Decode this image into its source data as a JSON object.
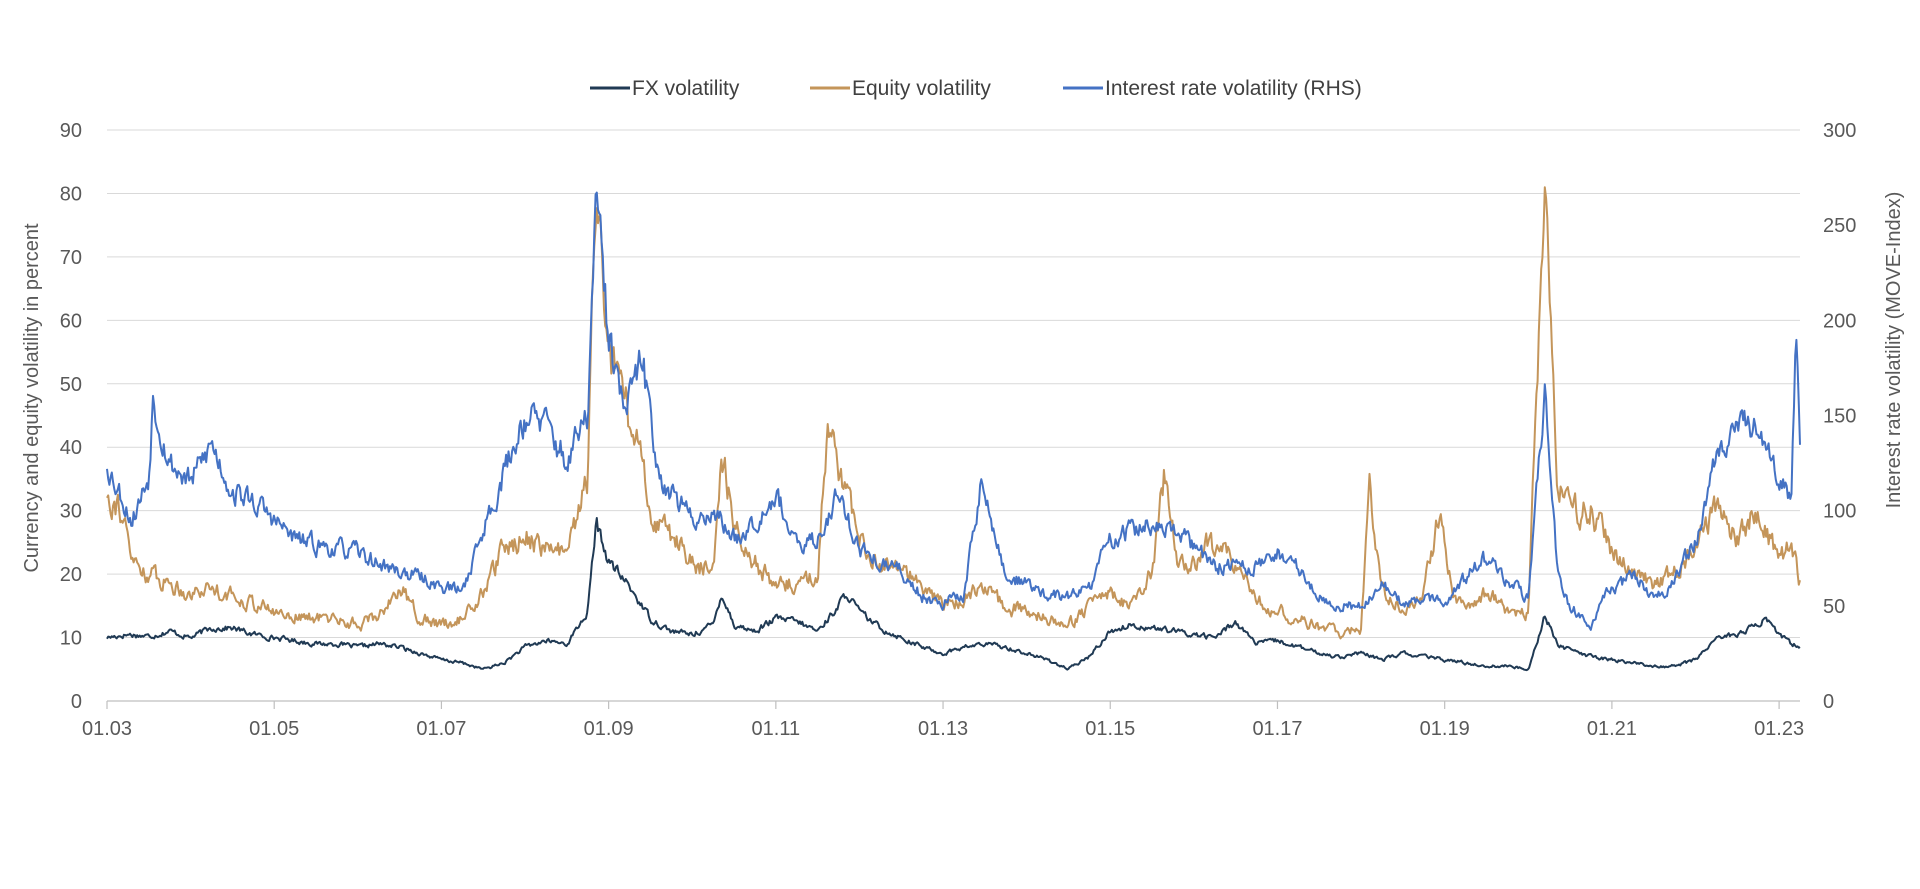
{
  "chart_data": {
    "type": "line",
    "title": "",
    "legend": {
      "position": "top",
      "entries": [
        "FX volatility",
        "Equity volatility",
        "Interest rate volatility (RHS)"
      ]
    },
    "x_axis": {
      "tick_labels": [
        "01.03",
        "01.05",
        "01.07",
        "01.09",
        "01.11",
        "01.13",
        "01.15",
        "01.17",
        "01.19",
        "01.21",
        "01.23"
      ],
      "start": 2003.0,
      "end": 2023.25
    },
    "y_left": {
      "label": "Currency and equity volatility in percent",
      "ylim": [
        0,
        90
      ],
      "ticks": [
        0,
        10,
        20,
        30,
        40,
        50,
        60,
        70,
        80,
        90
      ]
    },
    "y_right": {
      "label": "Interest rate volatility (MOVE-Index)",
      "ylim": [
        0,
        300
      ],
      "ticks": [
        0,
        50,
        100,
        150,
        200,
        250,
        300
      ]
    },
    "grid": true,
    "colors": {
      "fx": "#203a54",
      "equity": "#c4955a",
      "rates": "#4472c4"
    },
    "series": [
      {
        "name": "FX volatility",
        "axis": "left",
        "color": "#203a54",
        "points": [
          [
            2003.0,
            10.0
          ],
          [
            2003.25,
            10.5
          ],
          [
            2003.5,
            10.2
          ],
          [
            2003.75,
            11.0
          ],
          [
            2004.0,
            10.0
          ],
          [
            2004.25,
            11.5
          ],
          [
            2004.5,
            11.5
          ],
          [
            2004.75,
            10.5
          ],
          [
            2005.0,
            10.0
          ],
          [
            2005.25,
            9.5
          ],
          [
            2005.5,
            9.0
          ],
          [
            2005.75,
            9.0
          ],
          [
            2006.0,
            8.5
          ],
          [
            2006.25,
            9.0
          ],
          [
            2006.5,
            8.5
          ],
          [
            2006.75,
            7.5
          ],
          [
            2007.0,
            6.5
          ],
          [
            2007.25,
            6.0
          ],
          [
            2007.5,
            5.0
          ],
          [
            2007.75,
            6.0
          ],
          [
            2008.0,
            8.5
          ],
          [
            2008.25,
            9.5
          ],
          [
            2008.5,
            9.0
          ],
          [
            2008.75,
            14.0
          ],
          [
            2008.85,
            28.0
          ],
          [
            2009.0,
            22.0
          ],
          [
            2009.25,
            18.0
          ],
          [
            2009.5,
            13.0
          ],
          [
            2009.75,
            11.0
          ],
          [
            2010.0,
            10.5
          ],
          [
            2010.25,
            12.0
          ],
          [
            2010.35,
            17.0
          ],
          [
            2010.5,
            12.0
          ],
          [
            2010.75,
            11.0
          ],
          [
            2011.0,
            13.0
          ],
          [
            2011.25,
            12.5
          ],
          [
            2011.5,
            11.0
          ],
          [
            2011.75,
            15.0
          ],
          [
            2011.85,
            17.0
          ],
          [
            2012.0,
            14.0
          ],
          [
            2012.25,
            11.5
          ],
          [
            2012.5,
            10.0
          ],
          [
            2012.75,
            8.5
          ],
          [
            2013.0,
            7.5
          ],
          [
            2013.25,
            8.5
          ],
          [
            2013.5,
            9.0
          ],
          [
            2013.75,
            8.5
          ],
          [
            2014.0,
            7.5
          ],
          [
            2014.25,
            6.5
          ],
          [
            2014.5,
            5.0
          ],
          [
            2014.75,
            7.0
          ],
          [
            2015.0,
            11.0
          ],
          [
            2015.25,
            12.0
          ],
          [
            2015.5,
            11.5
          ],
          [
            2015.75,
            11.0
          ],
          [
            2016.0,
            10.5
          ],
          [
            2016.25,
            10.0
          ],
          [
            2016.5,
            12.5
          ],
          [
            2016.75,
            9.0
          ],
          [
            2017.0,
            9.5
          ],
          [
            2017.25,
            8.5
          ],
          [
            2017.5,
            7.5
          ],
          [
            2017.75,
            7.0
          ],
          [
            2018.0,
            7.5
          ],
          [
            2018.25,
            6.5
          ],
          [
            2018.5,
            7.5
          ],
          [
            2018.75,
            7.0
          ],
          [
            2019.0,
            6.5
          ],
          [
            2019.25,
            6.0
          ],
          [
            2019.5,
            5.5
          ],
          [
            2019.75,
            5.5
          ],
          [
            2020.0,
            5.0
          ],
          [
            2020.2,
            13.5
          ],
          [
            2020.35,
            9.0
          ],
          [
            2020.5,
            8.0
          ],
          [
            2020.75,
            7.0
          ],
          [
            2021.0,
            6.5
          ],
          [
            2021.25,
            6.0
          ],
          [
            2021.5,
            5.5
          ],
          [
            2021.75,
            5.5
          ],
          [
            2022.0,
            6.5
          ],
          [
            2022.25,
            10.0
          ],
          [
            2022.5,
            10.5
          ],
          [
            2022.75,
            12.0
          ],
          [
            2022.85,
            13.0
          ],
          [
            2023.0,
            10.5
          ],
          [
            2023.15,
            9.0
          ],
          [
            2023.25,
            8.5
          ]
        ]
      },
      {
        "name": "Equity volatility",
        "axis": "left",
        "color": "#c4955a",
        "points": [
          [
            2003.0,
            33.0
          ],
          [
            2003.15,
            31.0
          ],
          [
            2003.3,
            22.0
          ],
          [
            2003.5,
            20.0
          ],
          [
            2003.75,
            18.5
          ],
          [
            2004.0,
            17.0
          ],
          [
            2004.25,
            18.0
          ],
          [
            2004.5,
            16.5
          ],
          [
            2004.75,
            15.5
          ],
          [
            2005.0,
            14.0
          ],
          [
            2005.25,
            13.5
          ],
          [
            2005.5,
            13.0
          ],
          [
            2005.75,
            13.0
          ],
          [
            2006.0,
            12.0
          ],
          [
            2006.25,
            13.5
          ],
          [
            2006.5,
            18.0
          ],
          [
            2006.75,
            13.0
          ],
          [
            2007.0,
            12.0
          ],
          [
            2007.25,
            13.0
          ],
          [
            2007.5,
            17.0
          ],
          [
            2007.75,
            24.0
          ],
          [
            2008.0,
            26.0
          ],
          [
            2008.25,
            24.0
          ],
          [
            2008.5,
            23.0
          ],
          [
            2008.75,
            35.0
          ],
          [
            2008.85,
            80.0
          ],
          [
            2009.0,
            55.0
          ],
          [
            2009.15,
            48.0
          ],
          [
            2009.35,
            40.0
          ],
          [
            2009.5,
            30.0
          ],
          [
            2009.75,
            26.0
          ],
          [
            2010.0,
            22.0
          ],
          [
            2010.25,
            20.0
          ],
          [
            2010.35,
            40.0
          ],
          [
            2010.5,
            28.0
          ],
          [
            2010.75,
            22.0
          ],
          [
            2011.0,
            18.0
          ],
          [
            2011.25,
            18.5
          ],
          [
            2011.5,
            20.0
          ],
          [
            2011.62,
            45.0
          ],
          [
            2011.75,
            36.0
          ],
          [
            2012.0,
            25.0
          ],
          [
            2012.25,
            22.0
          ],
          [
            2012.5,
            22.0
          ],
          [
            2012.75,
            17.0
          ],
          [
            2013.0,
            15.5
          ],
          [
            2013.25,
            16.0
          ],
          [
            2013.5,
            18.0
          ],
          [
            2013.75,
            14.5
          ],
          [
            2014.0,
            14.5
          ],
          [
            2014.25,
            13.0
          ],
          [
            2014.5,
            12.0
          ],
          [
            2014.75,
            15.0
          ],
          [
            2015.0,
            17.0
          ],
          [
            2015.25,
            15.0
          ],
          [
            2015.5,
            20.0
          ],
          [
            2015.65,
            36.0
          ],
          [
            2015.8,
            23.0
          ],
          [
            2016.0,
            21.0
          ],
          [
            2016.15,
            25.0
          ],
          [
            2016.5,
            22.0
          ],
          [
            2016.75,
            16.0
          ],
          [
            2017.0,
            14.0
          ],
          [
            2017.25,
            13.0
          ],
          [
            2017.5,
            11.5
          ],
          [
            2017.75,
            11.0
          ],
          [
            2018.0,
            11.0
          ],
          [
            2018.1,
            33.0
          ],
          [
            2018.25,
            18.0
          ],
          [
            2018.5,
            14.0
          ],
          [
            2018.75,
            17.0
          ],
          [
            2018.95,
            31.0
          ],
          [
            2019.1,
            17.0
          ],
          [
            2019.25,
            14.0
          ],
          [
            2019.5,
            17.0
          ],
          [
            2019.75,
            14.5
          ],
          [
            2020.0,
            14.0
          ],
          [
            2020.2,
            82.0
          ],
          [
            2020.35,
            35.0
          ],
          [
            2020.5,
            30.0
          ],
          [
            2020.75,
            30.0
          ],
          [
            2021.0,
            24.0
          ],
          [
            2021.25,
            20.0
          ],
          [
            2021.5,
            18.5
          ],
          [
            2021.75,
            20.0
          ],
          [
            2022.0,
            24.0
          ],
          [
            2022.25,
            30.0
          ],
          [
            2022.5,
            26.0
          ],
          [
            2022.75,
            30.0
          ],
          [
            2023.0,
            22.0
          ],
          [
            2023.15,
            24.0
          ],
          [
            2023.25,
            19.0
          ]
        ]
      },
      {
        "name": "Interest rate volatility (RHS)",
        "axis": "right",
        "color": "#4472c4",
        "points": [
          [
            2003.0,
            125.0
          ],
          [
            2003.15,
            110.0
          ],
          [
            2003.3,
            95.0
          ],
          [
            2003.5,
            118.0
          ],
          [
            2003.55,
            160.0
          ],
          [
            2003.75,
            125.0
          ],
          [
            2004.0,
            115.0
          ],
          [
            2004.25,
            135.0
          ],
          [
            2004.5,
            110.0
          ],
          [
            2004.75,
            105.0
          ],
          [
            2005.0,
            95.0
          ],
          [
            2005.25,
            85.0
          ],
          [
            2005.5,
            82.0
          ],
          [
            2005.75,
            80.0
          ],
          [
            2006.0,
            78.0
          ],
          [
            2006.25,
            72.0
          ],
          [
            2006.5,
            68.0
          ],
          [
            2006.75,
            65.0
          ],
          [
            2007.0,
            60.0
          ],
          [
            2007.25,
            58.0
          ],
          [
            2007.5,
            90.0
          ],
          [
            2007.75,
            120.0
          ],
          [
            2008.0,
            150.0
          ],
          [
            2008.25,
            145.0
          ],
          [
            2008.5,
            125.0
          ],
          [
            2008.75,
            150.0
          ],
          [
            2008.85,
            264.0
          ],
          [
            2009.0,
            190.0
          ],
          [
            2009.2,
            150.0
          ],
          [
            2009.4,
            180.0
          ],
          [
            2009.6,
            120.0
          ],
          [
            2009.75,
            110.0
          ],
          [
            2010.0,
            95.0
          ],
          [
            2010.25,
            100.0
          ],
          [
            2010.5,
            85.0
          ],
          [
            2010.75,
            95.0
          ],
          [
            2011.0,
            110.0
          ],
          [
            2011.25,
            80.0
          ],
          [
            2011.5,
            85.0
          ],
          [
            2011.75,
            110.0
          ],
          [
            2012.0,
            80.0
          ],
          [
            2012.25,
            72.0
          ],
          [
            2012.5,
            68.0
          ],
          [
            2012.75,
            55.0
          ],
          [
            2013.0,
            52.0
          ],
          [
            2013.25,
            55.0
          ],
          [
            2013.45,
            115.0
          ],
          [
            2013.75,
            65.0
          ],
          [
            2014.0,
            62.0
          ],
          [
            2014.25,
            55.0
          ],
          [
            2014.5,
            55.0
          ],
          [
            2014.75,
            60.0
          ],
          [
            2015.0,
            85.0
          ],
          [
            2015.25,
            90.0
          ],
          [
            2015.5,
            92.0
          ],
          [
            2015.75,
            88.0
          ],
          [
            2016.0,
            82.0
          ],
          [
            2016.25,
            70.0
          ],
          [
            2016.5,
            72.0
          ],
          [
            2016.75,
            70.0
          ],
          [
            2017.0,
            78.0
          ],
          [
            2017.25,
            70.0
          ],
          [
            2017.5,
            55.0
          ],
          [
            2017.75,
            50.0
          ],
          [
            2018.0,
            50.0
          ],
          [
            2018.25,
            62.0
          ],
          [
            2018.5,
            50.0
          ],
          [
            2018.75,
            55.0
          ],
          [
            2019.0,
            52.0
          ],
          [
            2019.25,
            65.0
          ],
          [
            2019.5,
            75.0
          ],
          [
            2019.75,
            62.0
          ],
          [
            2020.0,
            55.0
          ],
          [
            2020.2,
            160.0
          ],
          [
            2020.35,
            70.0
          ],
          [
            2020.5,
            50.0
          ],
          [
            2020.75,
            40.0
          ],
          [
            2021.0,
            60.0
          ],
          [
            2021.25,
            65.0
          ],
          [
            2021.5,
            55.0
          ],
          [
            2021.75,
            62.0
          ],
          [
            2022.0,
            85.0
          ],
          [
            2022.25,
            125.0
          ],
          [
            2022.5,
            140.0
          ],
          [
            2022.75,
            150.0
          ],
          [
            2023.0,
            115.0
          ],
          [
            2023.15,
            105.0
          ],
          [
            2023.2,
            195.0
          ],
          [
            2023.25,
            135.0
          ]
        ]
      }
    ]
  }
}
